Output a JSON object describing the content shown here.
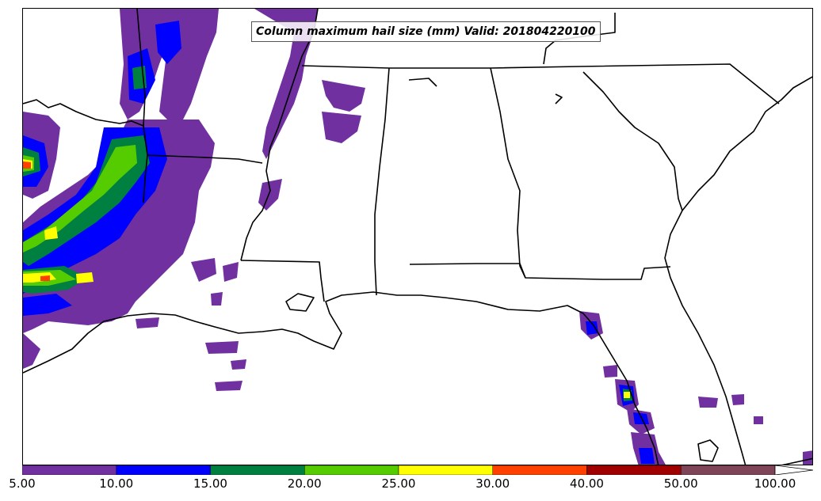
{
  "map": {
    "title": "Column maximum hail size (mm) Valid: 201804220100",
    "field": "Column maximum hail size",
    "units": "mm",
    "valid_time": "201804220100"
  },
  "legend": {
    "colors": [
      "#7030a0",
      "#0000ff",
      "#008040",
      "#55cc00",
      "#ffff00",
      "#ff4000",
      "#a00000",
      "#7f4458"
    ],
    "tick_labels": [
      "5.00",
      "10.00",
      "15.00",
      "20.00",
      "25.00",
      "30.00",
      "40.00",
      "50.00",
      "100.00"
    ]
  }
}
